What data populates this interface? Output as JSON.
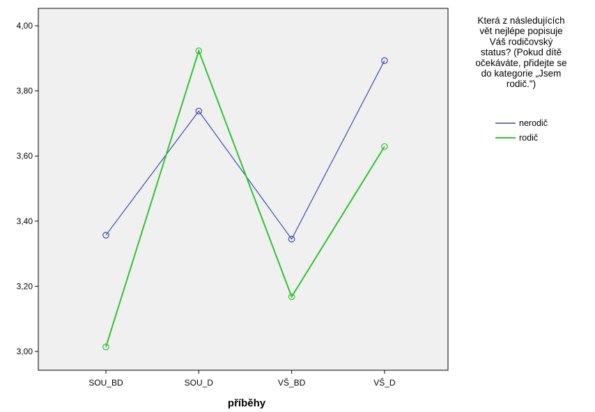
{
  "chart_data": {
    "type": "line",
    "categories": [
      "SOU_BD",
      "SOU_D",
      "VŠ_BD",
      "VŠ_D"
    ],
    "series": [
      {
        "name": "nerodič",
        "color": "#3c4ba6",
        "values": [
          3.357,
          3.738,
          3.345,
          3.893
        ]
      },
      {
        "name": "rodič",
        "color": "#2ec42e",
        "values": [
          3.014,
          3.923,
          3.168,
          3.629
        ]
      }
    ],
    "xlabel": "příběhy",
    "ylabel": "",
    "ylim": [
      3.0,
      4.0
    ],
    "yticks": [
      "3,00",
      "3,20",
      "3,40",
      "3,60",
      "3,80",
      "4,00"
    ],
    "ytick_values": [
      3.0,
      3.2,
      3.4,
      3.6,
      3.8,
      4.0
    ],
    "plot_background": "#f0f0f0",
    "grid": false,
    "legend": {
      "placement": "right",
      "title_lines": [
        "Která z následujících",
        "vět nejlépe popisuje",
        "Váš rodičovský",
        "status? (Pokud dítě",
        "očekáváte, přidejte se",
        "do kategorie „Jsem",
        "rodič.\")"
      ]
    }
  }
}
